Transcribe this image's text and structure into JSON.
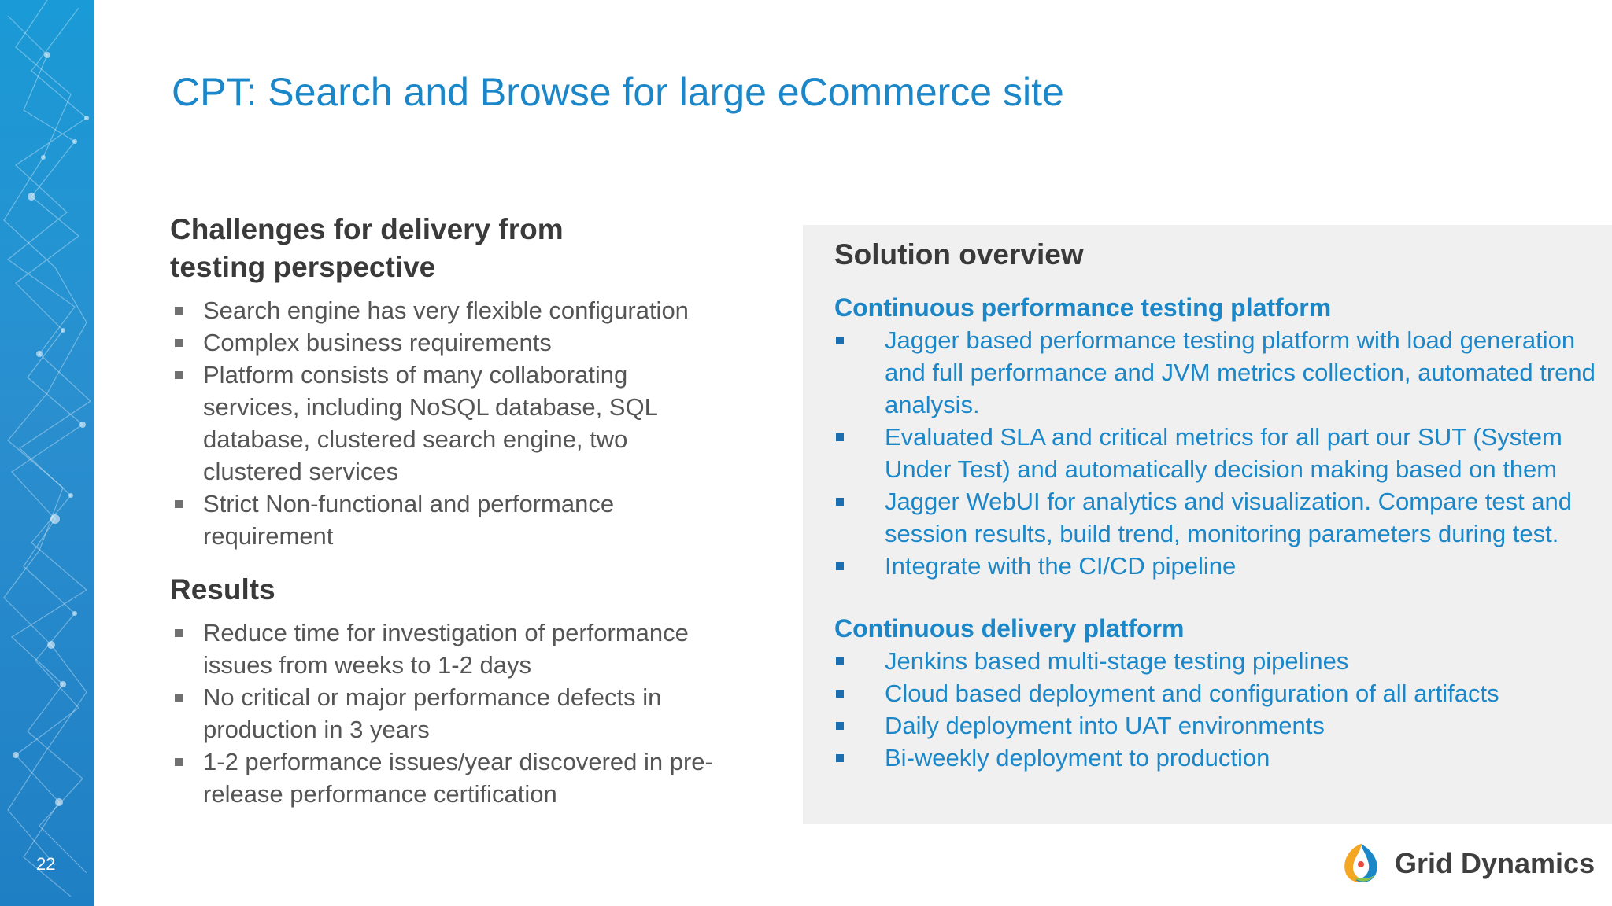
{
  "slide": {
    "number": "22",
    "title": "CPT: Search and Browse for large eCommerce site"
  },
  "challenges": {
    "heading_line1": "Challenges for delivery from",
    "heading_line2": "testing perspective",
    "items": [
      "Search engine has very flexible configuration",
      "Complex business requirements",
      "Platform consists of many collaborating services, including NoSQL database, SQL database, clustered search engine, two clustered services",
      "Strict Non-functional and performance requirement"
    ]
  },
  "results": {
    "heading": "Results",
    "items": [
      "Reduce time for investigation of performance issues from weeks to 1-2 days",
      "No critical or major performance defects in production in 3 years",
      "1-2 performance issues/year discovered in pre-release performance certification"
    ]
  },
  "solution": {
    "heading": "Solution overview",
    "performance": {
      "heading": "Continuous performance testing platform",
      "items": [
        "Jagger based performance testing platform with load generation and full performance and JVM metrics collection, automated trend analysis.",
        "Evaluated SLA and critical metrics for all part our SUT (System Under Test) and automatically decision making based on them",
        "Jagger WebUI for  analytics and visualization. Compare test and session results, build trend, monitoring parameters during test.",
        "Integrate with the CI/CD pipeline"
      ]
    },
    "delivery": {
      "heading": "Continuous delivery platform",
      "items": [
        "Jenkins based multi-stage testing pipelines",
        "Cloud based deployment and configuration of all artifacts",
        "Daily deployment into UAT environments",
        "Bi-weekly deployment to production"
      ]
    }
  },
  "logo": {
    "text": "Grid Dynamics",
    "icon": "grid-dynamics-logo-icon"
  },
  "colors": {
    "accent": "#1b87c8",
    "band": "#1f8fd0",
    "panel": "#f0f0f0"
  }
}
